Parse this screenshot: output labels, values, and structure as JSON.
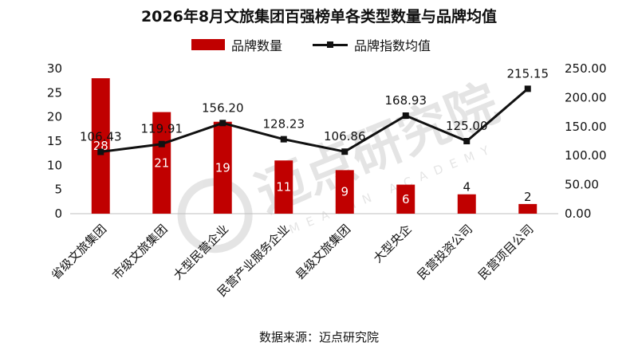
{
  "chart_data": {
    "type": "bar",
    "title": "2026年8月文旅集团百强榜单各类型数量与品牌均值",
    "categories": [
      "省级文旅集团",
      "市级文旅集团",
      "大型民营企业",
      "民营产业服务企业",
      "县级文旅集团",
      "大型央企",
      "民营投资公司",
      "民营项目公司"
    ],
    "series": [
      {
        "name": "品牌数量",
        "type": "bar",
        "axis": "left",
        "color": "#c00000",
        "values": [
          28,
          21,
          19,
          11,
          9,
          6,
          4,
          2
        ],
        "labels": [
          "28",
          "21",
          "19",
          "11",
          "9",
          "6",
          "4",
          "2"
        ]
      },
      {
        "name": "品牌指数均值",
        "type": "line",
        "axis": "right",
        "color": "#111111",
        "values": [
          106.43,
          119.91,
          156.2,
          128.23,
          106.86,
          168.93,
          125.0,
          215.15
        ],
        "labels": [
          "106.43",
          "119.91",
          "156.20",
          "128.23",
          "106.86",
          "168.93",
          "125.00",
          "215.15"
        ]
      }
    ],
    "y_left": {
      "lim": [
        0,
        30
      ],
      "ticks": [
        "0",
        "5",
        "10",
        "15",
        "20",
        "25",
        "30"
      ]
    },
    "y_right": {
      "lim": [
        0,
        250
      ],
      "ticks": [
        "0.00",
        "50.00",
        "100.00",
        "150.00",
        "200.00",
        "250.00"
      ]
    },
    "legend_position": "top-center",
    "grid": false
  },
  "watermark": {
    "text_cn": "迈点研究院",
    "text_en": "MEADIN ACADEMY"
  },
  "source_note": "数据来源：迈点研究院"
}
